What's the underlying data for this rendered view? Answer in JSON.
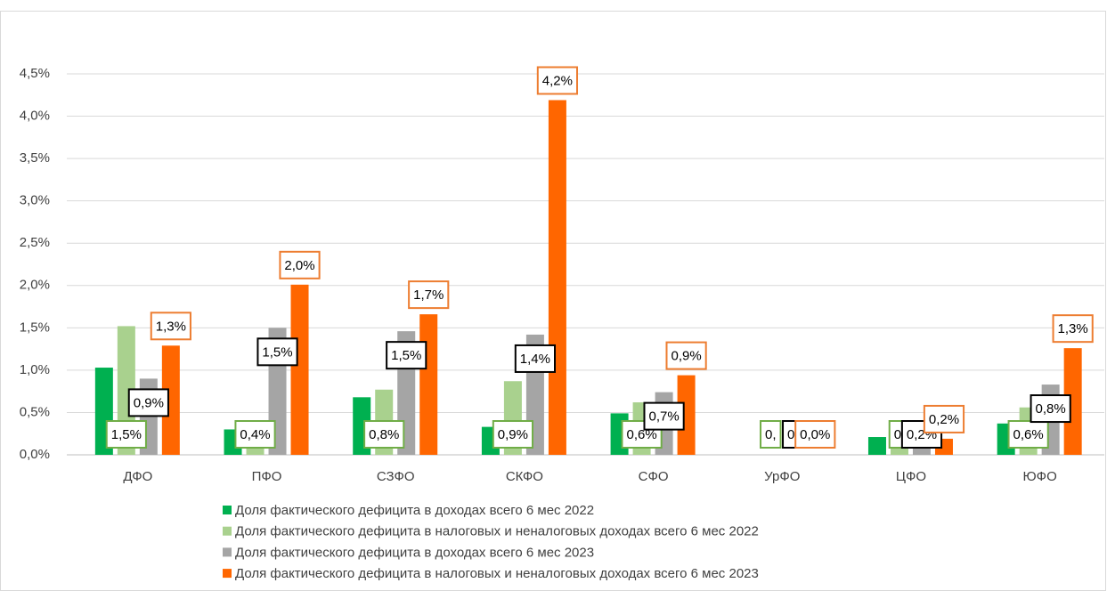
{
  "chart_data": {
    "type": "bar",
    "categories": [
      "ДФО",
      "ПФО",
      "СЗФО",
      "СКФО",
      "СФО",
      "УрФО",
      "ЦФО",
      "ЮФО"
    ],
    "series": [
      {
        "name": "Доля фактического дефицита в доходах всего 6 мес 2022",
        "color": "#00b050",
        "values": [
          1.03,
          0.3,
          0.68,
          0.33,
          0.49,
          0,
          0.21,
          0.37
        ]
      },
      {
        "name": "Доля фактического дефицита в налоговых и неналоговых доходах всего 6 мес 2022",
        "color": "#a9d18e",
        "label_color": "#70ad47",
        "values": [
          1.52,
          0.38,
          0.77,
          0.87,
          0.62,
          0,
          0.18,
          0.56
        ],
        "value_labels": [
          "1,5%",
          "0,4%",
          "0,8%",
          "0,9%",
          "0,6%",
          "0,",
          "0,",
          "0,6%"
        ]
      },
      {
        "name": "Доля фактического дефицита в доходах всего 6 мес 2023",
        "color": "#a5a5a5",
        "label_color": "#000000",
        "values": [
          0.9,
          1.5,
          1.46,
          1.42,
          0.74,
          0,
          0.17,
          0.83
        ],
        "value_labels": [
          "0,9%",
          "1,5%",
          "1,5%",
          "1,4%",
          "0,7%",
          "0,",
          "0,2%",
          "0,8%"
        ]
      },
      {
        "name": "Доля фактического дефицита в налоговых и неналоговых доходах всего 6 мес 2023",
        "color": "#ff6600",
        "label_color": "#ed7d31",
        "values": [
          1.29,
          2.01,
          1.66,
          4.19,
          0.94,
          0,
          0.19,
          1.26
        ],
        "value_labels": [
          "1,3%",
          "2,0%",
          "1,7%",
          "4,2%",
          "0,9%",
          "0,0%",
          "0,2%",
          "1,3%"
        ]
      }
    ],
    "ylim": [
      0,
      4.5
    ],
    "yticks": [
      {
        "value": 0,
        "label": "0,0%"
      },
      {
        "value": 0.5,
        "label": "0,5%"
      },
      {
        "value": 1,
        "label": "1,0%"
      },
      {
        "value": 1.5,
        "label": "1,5%"
      },
      {
        "value": 2,
        "label": "2,0%"
      },
      {
        "value": 2.5,
        "label": "2,5%"
      },
      {
        "value": 3,
        "label": "3,0%"
      },
      {
        "value": 3.5,
        "label": "3,5%"
      },
      {
        "value": 4,
        "label": "4,0%"
      },
      {
        "value": 4.5,
        "label": "4,5%"
      }
    ],
    "grid": true
  }
}
